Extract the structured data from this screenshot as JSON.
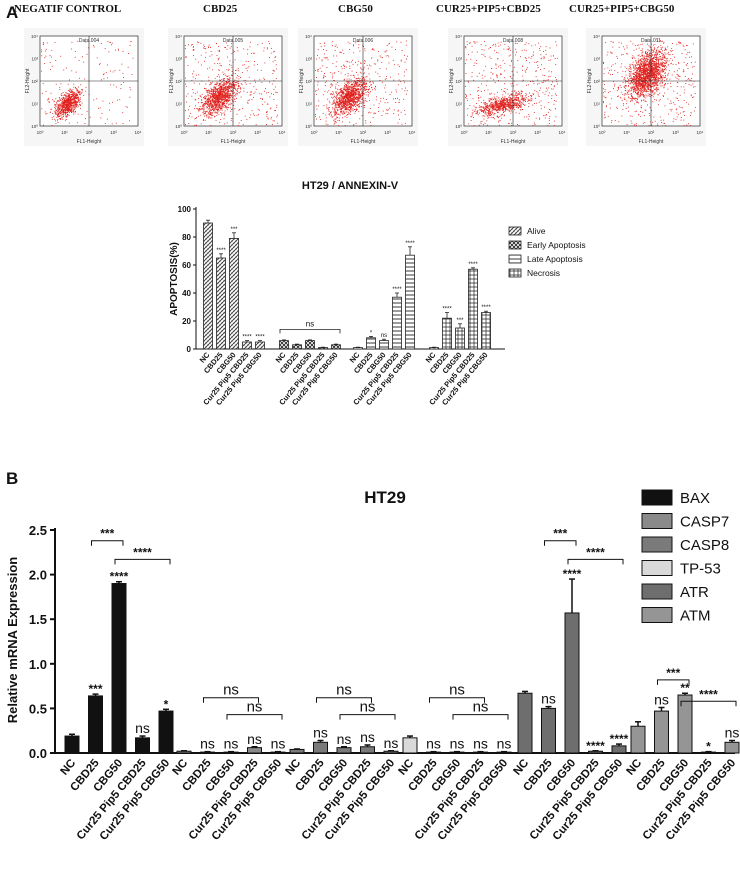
{
  "panel_a_label": "A",
  "panel_b_label": "B",
  "flow_panels": [
    {
      "title": "NEGATIF CONTROL",
      "data_label": "Data.004",
      "x_axis": "FL1-Height",
      "y_axis": "FL2-Height",
      "spread": "low"
    },
    {
      "title": "CBD25",
      "data_label": "Data.005",
      "x_axis": "FL1-Height",
      "y_axis": "FL2-Height",
      "spread": "mid"
    },
    {
      "title": "CBG50",
      "data_label": "Data.006",
      "x_axis": "FL1-Height",
      "y_axis": "FL2-Height",
      "spread": "mid"
    },
    {
      "title": "CUR25+PIP5+CBD25",
      "data_label": "Data.008",
      "x_axis": "FL1-Height",
      "y_axis": "FL2-Height",
      "spread": "flat"
    },
    {
      "title": "CUR25+PIP5+CBG50",
      "data_label": "Data.011",
      "x_axis": "FL1-Height",
      "y_axis": "FL2-Height",
      "spread": "high"
    }
  ],
  "flow_tick_labels": [
    "10⁰",
    "10¹",
    "10²",
    "10³",
    "10⁴"
  ],
  "dot_color": "#e0201c",
  "chart_data": [
    {
      "type": "bar",
      "title": "HT29 / ANNEXIN-V",
      "ylabel": "APOPTOSIS(%)",
      "xlabel": "",
      "ylim": [
        0,
        100
      ],
      "yticks": [
        0,
        20,
        40,
        60,
        80,
        100
      ],
      "categories": [
        "NC",
        "CBD25",
        "CBG50",
        "Cur25 Pip5 CBD25",
        "Cur25 Pip5 CBG50"
      ],
      "legend": [
        "Alive",
        "Early Apoptosis",
        "Late Apoptosis",
        "Necrosis"
      ],
      "series": [
        {
          "name": "Alive",
          "values": [
            90,
            65,
            79,
            5,
            5
          ],
          "errors": [
            2,
            3,
            4,
            1,
            1
          ],
          "sig": [
            "",
            "****",
            "***",
            "****",
            "****"
          ]
        },
        {
          "name": "Early Apoptosis",
          "values": [
            6,
            3,
            6,
            1,
            3
          ],
          "errors": [
            0.5,
            0.5,
            0.5,
            0.3,
            0.5
          ],
          "sig": [
            "",
            "",
            "",
            "",
            ""
          ]
        },
        {
          "name": "Late Apoptosis",
          "values": [
            1,
            8,
            6,
            37,
            67
          ],
          "errors": [
            0.3,
            1,
            1,
            3,
            6
          ],
          "sig": [
            "",
            "*",
            "ns",
            "****",
            "****"
          ]
        },
        {
          "name": "Necrosis",
          "values": [
            1,
            22,
            15,
            57,
            26
          ],
          "errors": [
            0.3,
            4,
            3,
            1,
            1
          ],
          "sig": [
            "",
            "****",
            "***",
            "****",
            "****"
          ]
        }
      ],
      "group_annotations": [
        {
          "series": "Early Apoptosis",
          "text": "ns"
        }
      ]
    },
    {
      "type": "bar",
      "title": "HT29",
      "ylabel": "Relative  mRNA  Expression",
      "xlabel": "",
      "ylim": [
        0,
        2.5
      ],
      "yticks": [
        "0.0",
        "0.5",
        "1.0",
        "1.5",
        "2.0",
        "2.5"
      ],
      "categories": [
        "NC",
        "CBD25",
        "CBG50",
        "Cur25 Pip5 CBD25",
        "Cur25 Pip5 CBG50"
      ],
      "legend": [
        "BAX",
        "CASP7",
        "CASP8",
        "TP-53",
        "ATR",
        "ATM"
      ],
      "series": [
        {
          "name": "BAX",
          "values": [
            0.19,
            0.64,
            1.9,
            0.17,
            0.47
          ],
          "errors": [
            0.02,
            0.02,
            0.02,
            0.02,
            0.02
          ],
          "sig": [
            "",
            "***",
            "****",
            "ns",
            "*"
          ],
          "brackets": [
            [
              "***",
              1,
              2
            ],
            [
              "****",
              2,
              4
            ]
          ]
        },
        {
          "name": "CASP7",
          "values": [
            0.02,
            0.01,
            0.01,
            0.06,
            0.01
          ],
          "errors": [
            0.005,
            0.005,
            0.005,
            0.01,
            0.005
          ],
          "sig": [
            "",
            "ns",
            "ns",
            "ns",
            "ns"
          ],
          "brackets": [
            [
              "ns",
              1,
              3
            ],
            [
              "ns",
              2,
              4
            ]
          ]
        },
        {
          "name": "CASP8",
          "values": [
            0.04,
            0.12,
            0.06,
            0.07,
            0.02
          ],
          "errors": [
            0.005,
            0.02,
            0.01,
            0.02,
            0.005
          ],
          "sig": [
            "",
            "ns",
            "ns",
            "ns",
            "ns"
          ],
          "brackets": [
            [
              "ns",
              1,
              3
            ],
            [
              "ns",
              2,
              4
            ]
          ]
        },
        {
          "name": "TP-53",
          "values": [
            0.17,
            0.01,
            0.01,
            0.01,
            0.01
          ],
          "errors": [
            0.02,
            0.005,
            0.005,
            0.005,
            0.005
          ],
          "sig": [
            "",
            "ns",
            "ns",
            "ns",
            "ns"
          ],
          "brackets": [
            [
              "ns",
              1,
              3
            ],
            [
              "ns",
              2,
              4
            ]
          ]
        },
        {
          "name": "ATR",
          "values": [
            0.67,
            0.5,
            1.57,
            0.02,
            0.08
          ],
          "errors": [
            0.02,
            0.02,
            0.38,
            0.005,
            0.02
          ],
          "sig": [
            "",
            "ns",
            "****",
            "****",
            "****"
          ],
          "brackets": [
            [
              "***",
              1,
              2
            ],
            [
              "****",
              2,
              4
            ]
          ]
        },
        {
          "name": "ATM",
          "values": [
            0.3,
            0.47,
            0.65,
            0.01,
            0.12
          ],
          "errors": [
            0.05,
            0.04,
            0.02,
            0.005,
            0.02
          ],
          "sig": [
            "",
            "ns",
            "**",
            "*",
            "ns"
          ],
          "brackets": [
            [
              "***",
              1,
              2
            ],
            [
              "****",
              2,
              4
            ]
          ]
        }
      ]
    }
  ]
}
